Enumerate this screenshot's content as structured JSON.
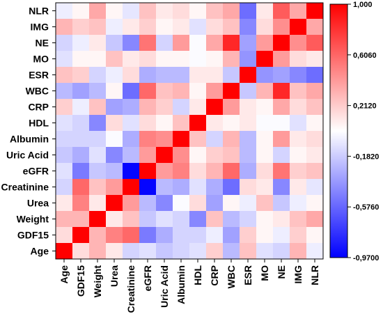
{
  "chart_data": {
    "type": "heatmap",
    "variables": [
      "Age",
      "GDF15",
      "Weight",
      "Urea",
      "Creatinine",
      "eGFR",
      "Uric Acid",
      "Albumin",
      "HDL",
      "CRP",
      "WBC",
      "ESR",
      "MO",
      "NE",
      "IMG",
      "NLR"
    ],
    "row_labels_top_to_bottom": [
      "NLR",
      "IMG",
      "NE",
      "MO",
      "ESR",
      "WBC",
      "CRP",
      "HDL",
      "Albumin",
      "Uric Acid",
      "eGFR",
      "Creatinine",
      "Urea",
      "Weight",
      "GDF15",
      "Age"
    ],
    "col_labels": [
      "Age",
      "GDF15",
      "Weight",
      "Urea",
      "Creatinine",
      "eGFR",
      "Uric Acid",
      "Albumin",
      "HDL",
      "CRP",
      "WBC",
      "ESR",
      "MO",
      "NE",
      "IMG",
      "NLR"
    ],
    "matrix_rows_top_to_bottom": [
      [
        -0.05,
        0.05,
        0.35,
        0.05,
        -0.08,
        0.25,
        0.1,
        0.15,
        0.05,
        0.25,
        0.35,
        -0.55,
        0.1,
        0.65,
        0.35,
        1.0
      ],
      [
        0.3,
        0.2,
        0.25,
        -0.05,
        0.1,
        0.2,
        0.05,
        0.1,
        -0.1,
        0.15,
        0.25,
        -0.45,
        0.15,
        0.45,
        1.0,
        0.35
      ],
      [
        -0.15,
        -0.05,
        0.1,
        -0.2,
        -0.45,
        0.55,
        -0.15,
        0.4,
        0.0,
        0.35,
        0.85,
        -0.35,
        0.4,
        1.0,
        0.45,
        0.65
      ],
      [
        -0.1,
        0.05,
        0.05,
        0.25,
        0.1,
        0.15,
        0.05,
        0.05,
        0.0,
        0.05,
        0.3,
        -0.4,
        1.0,
        0.4,
        0.15,
        0.1
      ],
      [
        0.25,
        0.2,
        -0.15,
        -0.05,
        0.15,
        -0.3,
        -0.25,
        -0.25,
        0.1,
        0.1,
        -0.2,
        1.0,
        -0.4,
        -0.35,
        -0.45,
        -0.55
      ],
      [
        -0.25,
        -0.35,
        -0.25,
        0.05,
        -0.55,
        0.6,
        0.25,
        0.3,
        0.05,
        0.4,
        1.0,
        -0.2,
        0.3,
        0.85,
        0.25,
        0.35
      ],
      [
        0.2,
        -0.05,
        0.25,
        -0.35,
        -0.3,
        0.3,
        0.2,
        -0.15,
        0.1,
        1.0,
        0.4,
        0.1,
        0.05,
        0.35,
        0.15,
        0.25
      ],
      [
        -0.1,
        -0.15,
        -0.45,
        0.15,
        -0.1,
        0.15,
        0.05,
        0.25,
        1.0,
        0.1,
        0.05,
        0.1,
        0.0,
        0.0,
        -0.1,
        0.05
      ],
      [
        -0.15,
        -0.15,
        -0.15,
        0.0,
        -0.3,
        0.5,
        0.45,
        1.0,
        0.25,
        -0.15,
        0.3,
        -0.25,
        0.05,
        0.4,
        0.1,
        0.15
      ],
      [
        -0.2,
        -0.3,
        -0.1,
        -0.45,
        -0.25,
        0.4,
        1.0,
        0.45,
        0.05,
        0.2,
        0.25,
        -0.25,
        0.05,
        -0.15,
        0.05,
        0.1
      ],
      [
        -0.1,
        -0.5,
        -0.2,
        -0.25,
        -0.95,
        1.0,
        0.4,
        0.5,
        0.15,
        0.3,
        0.6,
        -0.3,
        0.15,
        0.55,
        0.2,
        0.25
      ],
      [
        -0.15,
        0.6,
        0.25,
        0.4,
        1.0,
        -0.95,
        -0.25,
        -0.3,
        -0.1,
        -0.3,
        -0.55,
        0.15,
        0.1,
        -0.45,
        0.1,
        -0.08
      ],
      [
        0.1,
        0.5,
        0.1,
        1.0,
        0.4,
        -0.25,
        -0.45,
        0.0,
        0.15,
        -0.35,
        0.05,
        -0.05,
        0.25,
        -0.2,
        -0.05,
        0.05
      ],
      [
        0.3,
        0.3,
        1.0,
        0.1,
        0.25,
        -0.2,
        -0.1,
        -0.15,
        -0.45,
        0.25,
        -0.25,
        -0.15,
        0.05,
        0.1,
        0.25,
        0.35
      ],
      [
        0.15,
        1.0,
        0.3,
        0.5,
        0.6,
        -0.5,
        -0.3,
        -0.15,
        -0.15,
        -0.05,
        -0.35,
        0.2,
        0.05,
        -0.05,
        0.2,
        0.05
      ],
      [
        1.0,
        0.15,
        0.3,
        0.1,
        -0.15,
        -0.1,
        -0.2,
        -0.15,
        -0.1,
        0.2,
        -0.25,
        0.25,
        -0.1,
        -0.15,
        0.3,
        -0.05
      ]
    ],
    "color_scale": {
      "min": -0.97,
      "max": 1.0,
      "low_color": "#0000ff",
      "mid_color": "#ffffff",
      "high_color": "#ff0000",
      "tick_labels": [
        "1,000",
        "0,6060",
        "0,2120",
        "-0,1820",
        "-0,5760",
        "-0,9700"
      ]
    },
    "legend_placement": "right"
  }
}
